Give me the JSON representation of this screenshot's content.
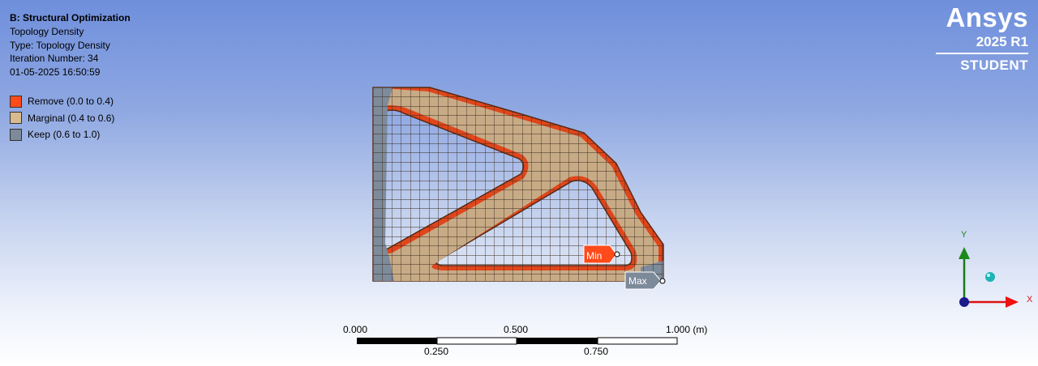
{
  "info": {
    "title": "B: Structural Optimization",
    "lines": [
      "Topology Density",
      "Type: Topology Density",
      "Iteration Number: 34",
      "01-05-2025 16:50:59"
    ]
  },
  "legend": [
    {
      "label": "Remove (0.0 to 0.4)",
      "color": "#ff4a1a"
    },
    {
      "label": "Marginal (0.4 to 0.6)",
      "color": "#d9bb8f"
    },
    {
      "label": "Keep (0.6 to 1.0)",
      "color": "#7c8a9a"
    }
  ],
  "logo": {
    "brand": "Ansys",
    "version": "2025 R1",
    "edition": "STUDENT"
  },
  "probes": {
    "min": "Min",
    "max": "Max"
  },
  "scale": {
    "ticks_top": [
      "0.000",
      "0.500",
      "1.000 (m)"
    ],
    "ticks_bottom": [
      "0.250",
      "0.750"
    ]
  },
  "triad": {
    "x": "X",
    "y": "Y"
  },
  "colors": {
    "marginal": "#c7ab86",
    "remove": "#e0461c",
    "keep": "#7d8b9b",
    "mesh": "#3a2a1c"
  }
}
